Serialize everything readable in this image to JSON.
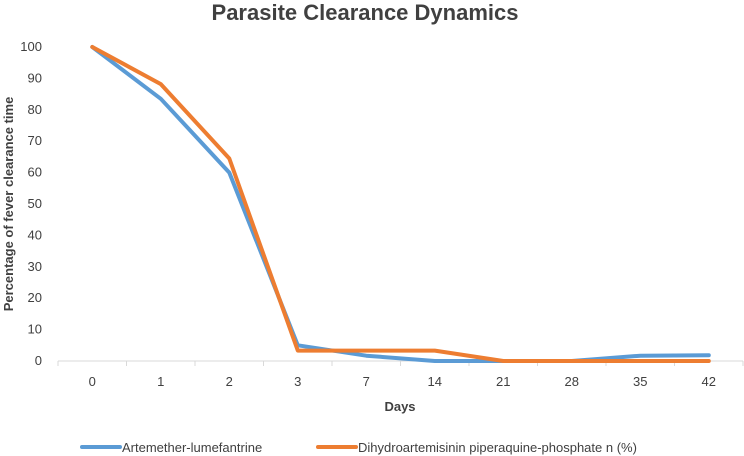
{
  "chart_data": {
    "type": "line",
    "title": "Parasite Clearance Dynamics",
    "xlabel": "Days",
    "ylabel": "Percentage of fever clearance time",
    "categories": [
      "0",
      "1",
      "2",
      "3",
      "7",
      "14",
      "21",
      "28",
      "35",
      "42"
    ],
    "ylim": [
      0,
      100
    ],
    "yticks": [
      0,
      10,
      20,
      30,
      40,
      50,
      60,
      70,
      80,
      90,
      100
    ],
    "grid": false,
    "legend_position": "bottom",
    "series": [
      {
        "name": "Artemether-lumefantrine",
        "color": "#5B9BD5",
        "values": [
          100,
          83.5,
          60,
          5,
          1.7,
          0,
          0,
          0,
          1.7,
          1.8
        ]
      },
      {
        "name": "Dihydroartemisinin piperaquine-phosphate n (%)",
        "color": "#ED7D31",
        "values": [
          100,
          88.2,
          64.5,
          3.3,
          3.3,
          3.3,
          0,
          0,
          0,
          0
        ]
      }
    ]
  }
}
